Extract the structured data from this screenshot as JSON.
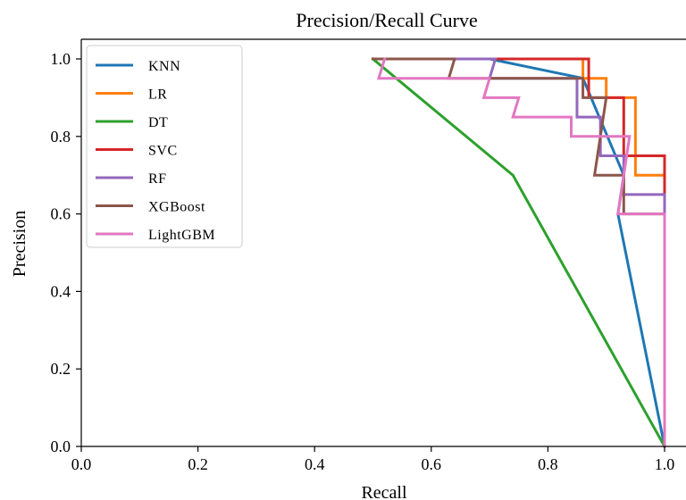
{
  "chart_data": {
    "type": "line",
    "title": "Precision/Recall Curve",
    "xlabel": "Recall",
    "ylabel": "Precision",
    "xlim": [
      0.0,
      1.0
    ],
    "ylim": [
      0.0,
      1.0
    ],
    "x_ticks": [
      "0.0",
      "0.2",
      "0.4",
      "0.6",
      "0.8",
      "1.0"
    ],
    "y_ticks": [
      "0.0",
      "0.2",
      "0.4",
      "0.6",
      "0.8",
      "1.0"
    ],
    "grid": false,
    "legend_position": "upper-left",
    "series": [
      {
        "name": "KNN",
        "color": "#1f77b4",
        "points": [
          [
            0.5,
            1.0
          ],
          [
            0.7,
            1.0
          ],
          [
            0.86,
            0.95
          ],
          [
            0.93,
            0.7
          ],
          [
            0.92,
            0.6
          ],
          [
            1.0,
            0.0
          ]
        ]
      },
      {
        "name": "LR",
        "color": "#ff7f0e",
        "points": [
          [
            0.51,
            1.0
          ],
          [
            0.86,
            1.0
          ],
          [
            0.86,
            0.95
          ],
          [
            0.9,
            0.95
          ],
          [
            0.9,
            0.9
          ],
          [
            0.95,
            0.9
          ],
          [
            0.95,
            0.75
          ],
          [
            0.95,
            0.7
          ],
          [
            1.0,
            0.7
          ],
          [
            1.0,
            0.0
          ]
        ]
      },
      {
        "name": "DT",
        "color": "#2ca02c",
        "points": [
          [
            0.5,
            1.0
          ],
          [
            0.74,
            0.7
          ],
          [
            1.0,
            0.0
          ]
        ]
      },
      {
        "name": "SVC",
        "color": "#d62728",
        "points": [
          [
            0.5,
            1.0
          ],
          [
            0.87,
            1.0
          ],
          [
            0.87,
            0.95
          ],
          [
            0.87,
            0.9
          ],
          [
            0.93,
            0.9
          ],
          [
            0.93,
            0.75
          ],
          [
            1.0,
            0.75
          ],
          [
            1.0,
            0.0
          ]
        ]
      },
      {
        "name": "RF",
        "color": "#9467bd",
        "points": [
          [
            0.52,
            1.0
          ],
          [
            0.71,
            1.0
          ],
          [
            0.7,
            0.95
          ],
          [
            0.85,
            0.95
          ],
          [
            0.85,
            0.85
          ],
          [
            0.89,
            0.85
          ],
          [
            0.89,
            0.75
          ],
          [
            0.93,
            0.75
          ],
          [
            0.93,
            0.65
          ],
          [
            1.0,
            0.65
          ],
          [
            1.0,
            0.0
          ]
        ]
      },
      {
        "name": "XGBoost",
        "color": "#8c564b",
        "points": [
          [
            0.5,
            1.0
          ],
          [
            0.64,
            1.0
          ],
          [
            0.63,
            0.95
          ],
          [
            0.86,
            0.95
          ],
          [
            0.86,
            0.9
          ],
          [
            0.9,
            0.9
          ],
          [
            0.88,
            0.7
          ],
          [
            0.93,
            0.7
          ],
          [
            0.93,
            0.6
          ],
          [
            1.0,
            0.6
          ],
          [
            1.0,
            0.0
          ]
        ]
      },
      {
        "name": "LightGBM",
        "color": "#e377c2",
        "points": [
          [
            0.52,
            1.0
          ],
          [
            0.51,
            0.95
          ],
          [
            0.7,
            0.95
          ],
          [
            0.69,
            0.9
          ],
          [
            0.75,
            0.9
          ],
          [
            0.74,
            0.85
          ],
          [
            0.84,
            0.85
          ],
          [
            0.84,
            0.8
          ],
          [
            0.94,
            0.8
          ],
          [
            0.92,
            0.6
          ],
          [
            1.0,
            0.6
          ],
          [
            1.0,
            0.0
          ]
        ]
      }
    ]
  }
}
